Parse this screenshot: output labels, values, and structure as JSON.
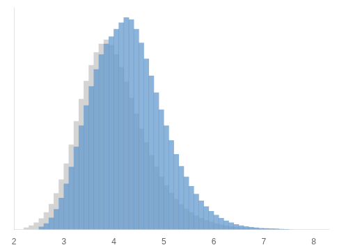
{
  "chart_data": {
    "type": "bar",
    "series": [
      {
        "color": "#d4d4d4",
        "x": [
          2.25,
          2.35,
          2.45,
          2.55,
          2.65,
          2.75,
          2.85,
          2.95,
          3.05,
          3.15,
          3.25,
          3.35,
          3.45,
          3.55,
          3.65,
          3.75,
          3.85,
          3.95,
          4.05,
          4.15,
          4.25,
          4.35,
          4.45,
          4.55,
          4.65,
          4.75,
          4.85,
          4.95,
          5.05,
          5.15,
          5.25,
          5.35,
          5.45,
          5.55,
          5.65,
          5.75,
          5.85,
          5.95,
          6.05,
          6.15,
          6.25,
          6.35,
          6.45,
          6.55,
          6.65,
          6.75,
          6.85,
          6.95,
          7.05,
          7.15,
          7.25,
          7.35,
          7.45,
          7.55
        ],
        "values": [
          0.008,
          0.018,
          0.032,
          0.052,
          0.08,
          0.12,
          0.17,
          0.235,
          0.31,
          0.4,
          0.51,
          0.615,
          0.7,
          0.775,
          0.835,
          0.875,
          0.895,
          0.87,
          0.825,
          0.765,
          0.695,
          0.62,
          0.545,
          0.475,
          0.41,
          0.35,
          0.295,
          0.248,
          0.207,
          0.172,
          0.143,
          0.118,
          0.097,
          0.08,
          0.065,
          0.053,
          0.043,
          0.035,
          0.028,
          0.022,
          0.018,
          0.014,
          0.011,
          0.009,
          0.007,
          0.006,
          0.005,
          0.004,
          0.003,
          0.002,
          0.0015,
          0.001,
          0.0008,
          0.0005
        ]
      },
      {
        "color": "#6699cc",
        "x": [
          2.55,
          2.65,
          2.75,
          2.85,
          2.95,
          3.05,
          3.15,
          3.25,
          3.35,
          3.45,
          3.55,
          3.65,
          3.75,
          3.85,
          3.95,
          4.05,
          4.15,
          4.25,
          4.35,
          4.45,
          4.55,
          4.65,
          4.75,
          4.85,
          4.95,
          5.05,
          5.15,
          5.25,
          5.35,
          5.45,
          5.55,
          5.65,
          5.75,
          5.85,
          5.95,
          6.05,
          6.15,
          6.25,
          6.35,
          6.45,
          6.55,
          6.65,
          6.75,
          6.85,
          6.95,
          7.05,
          7.15,
          7.25,
          7.35,
          7.45
        ],
        "values": [
          0.012,
          0.028,
          0.055,
          0.095,
          0.148,
          0.215,
          0.295,
          0.39,
          0.49,
          0.585,
          0.675,
          0.755,
          0.825,
          0.875,
          0.91,
          0.945,
          0.975,
          1.0,
          0.99,
          0.945,
          0.88,
          0.805,
          0.725,
          0.645,
          0.565,
          0.49,
          0.42,
          0.355,
          0.298,
          0.248,
          0.204,
          0.167,
          0.135,
          0.108,
          0.086,
          0.068,
          0.053,
          0.041,
          0.032,
          0.024,
          0.018,
          0.014,
          0.011,
          0.008,
          0.006,
          0.005,
          0.004,
          0.003,
          0.002,
          0.001
        ]
      }
    ],
    "xlim": [
      2.0,
      8.3
    ],
    "xticks": [
      2,
      3,
      4,
      5,
      6,
      7,
      8
    ],
    "ylim": [
      0,
      1.05
    ],
    "grid": false,
    "tick_labels": "x"
  }
}
